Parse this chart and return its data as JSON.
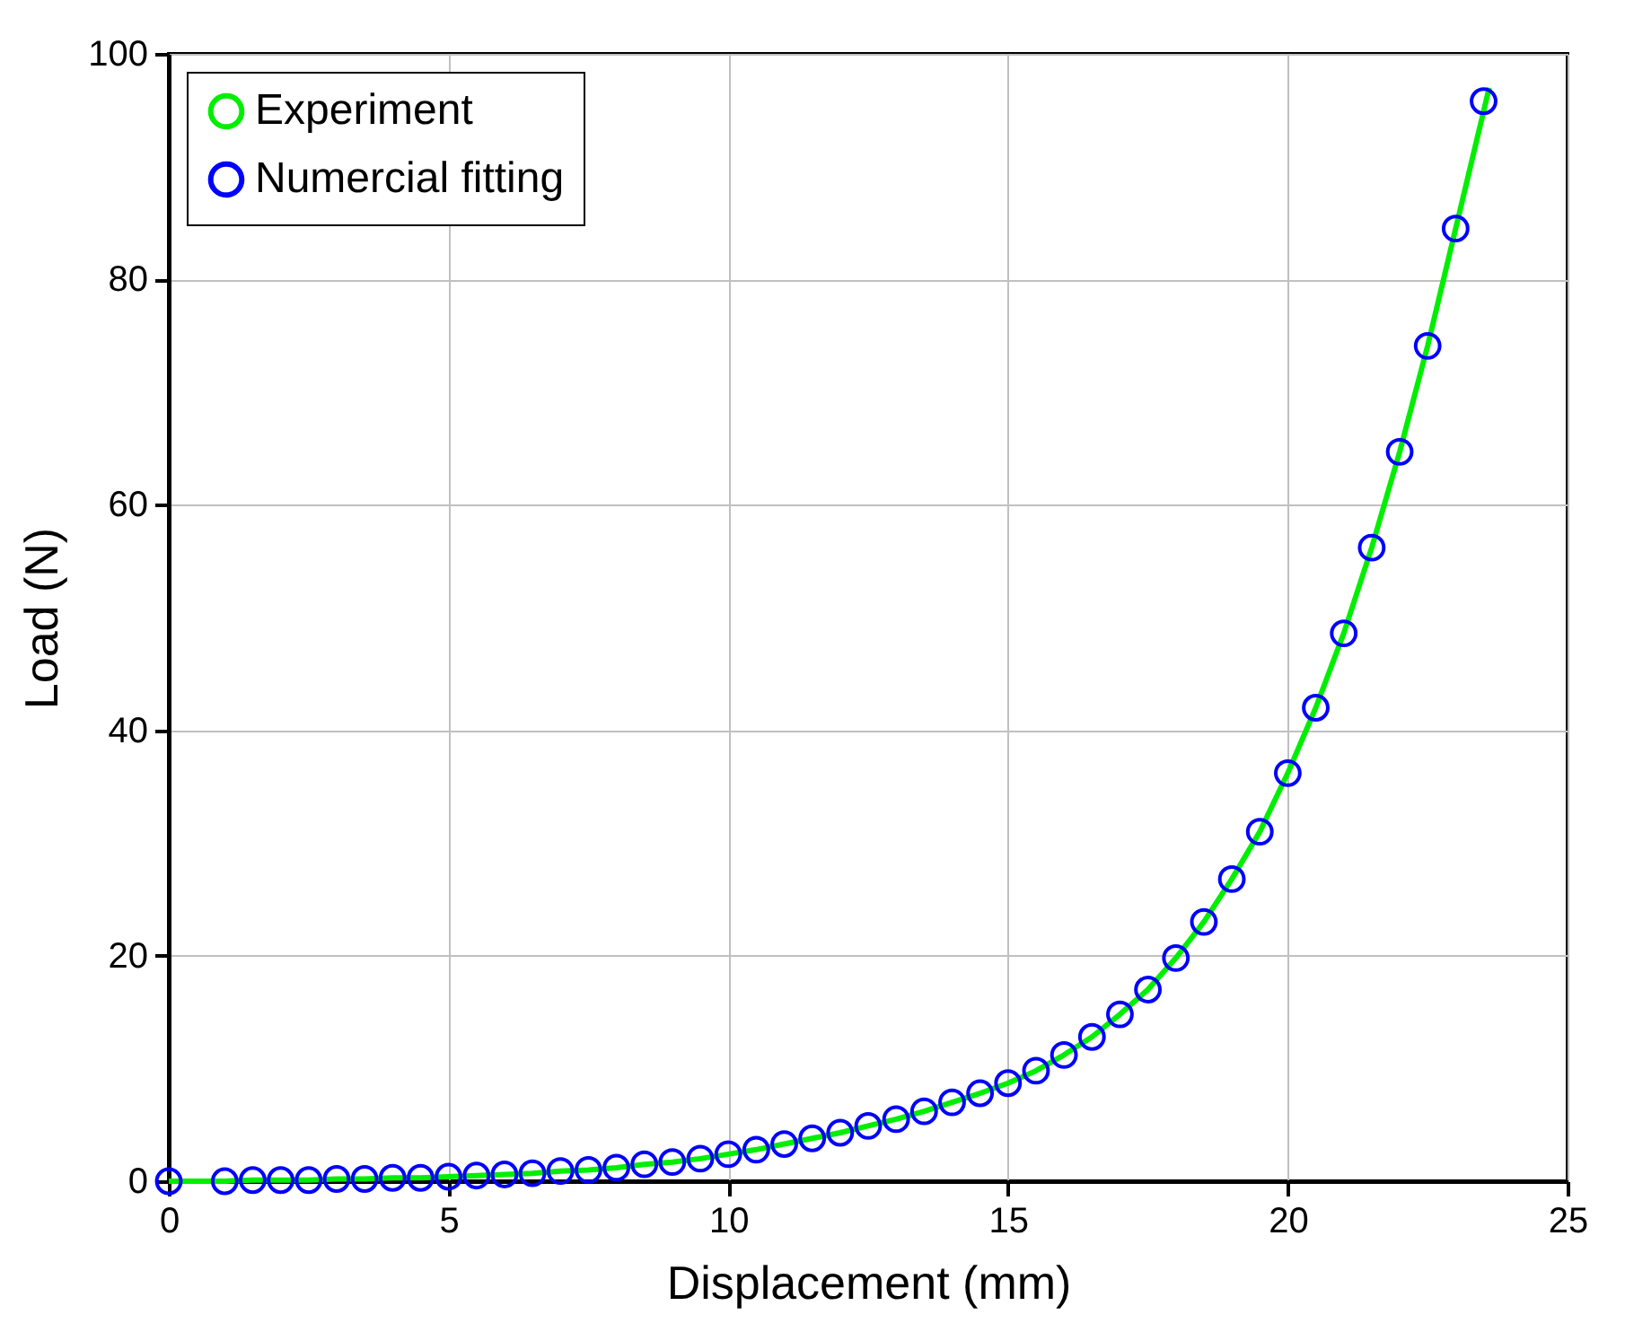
{
  "chart_data": {
    "type": "line",
    "xlabel": "Displacement (mm)",
    "ylabel": "Load (N)",
    "xlim": [
      0,
      25
    ],
    "xticks": [
      0,
      5,
      10,
      15,
      20,
      25
    ],
    "ylim": [
      0,
      100
    ],
    "yticks": [
      0,
      20,
      40,
      60,
      80,
      100
    ],
    "grid": true,
    "legend": "top left",
    "series": [
      {
        "name": "Experiment",
        "color": "#00ee00",
        "marker": "none",
        "x": [
          0,
          1,
          1.5,
          2,
          2.5,
          3,
          3.5,
          4,
          4.5,
          5,
          5.5,
          6,
          6.5,
          7,
          7.5,
          8,
          8.5,
          9,
          9.5,
          10,
          10.5,
          11,
          11.5,
          12,
          12.5,
          13,
          13.5,
          14,
          14.5,
          15,
          15.5,
          16,
          16.5,
          17,
          17.5,
          18,
          18.5,
          19,
          19.5,
          20,
          20.5,
          21,
          21.5,
          22,
          22.5,
          23,
          23.6
        ],
        "values": [
          0,
          0,
          0.1,
          0.1,
          0.1,
          0.2,
          0.2,
          0.3,
          0.3,
          0.4,
          0.5,
          0.6,
          0.7,
          0.9,
          1.0,
          1.2,
          1.5,
          1.7,
          2.0,
          2.4,
          2.8,
          3.3,
          3.8,
          4.3,
          4.9,
          5.5,
          6.2,
          7.0,
          7.8,
          8.7,
          9.8,
          11.2,
          12.8,
          14.8,
          17.0,
          19.8,
          23.0,
          26.8,
          31.0,
          36.2,
          42.0,
          48.6,
          56.2,
          64.7,
          74.1,
          84.5,
          97
        ]
      },
      {
        "name": "Numercial fitting",
        "type": "scatter",
        "color": "#0000ff",
        "marker": "circle",
        "x": [
          0,
          1,
          1.5,
          2,
          2.5,
          3,
          3.5,
          4,
          4.5,
          5,
          5.5,
          6,
          6.5,
          7,
          7.5,
          8,
          8.5,
          9,
          9.5,
          10,
          10.5,
          11,
          11.5,
          12,
          12.5,
          13,
          13.5,
          14,
          14.5,
          15,
          15.5,
          16,
          16.5,
          17,
          17.5,
          18,
          18.5,
          19,
          19.5,
          20,
          20.5,
          21,
          21.5,
          22,
          22.5,
          23,
          23.5
        ],
        "values": [
          0,
          0,
          0.1,
          0.1,
          0.1,
          0.2,
          0.2,
          0.3,
          0.3,
          0.4,
          0.5,
          0.6,
          0.7,
          0.9,
          1.0,
          1.2,
          1.5,
          1.7,
          2.0,
          2.4,
          2.8,
          3.3,
          3.8,
          4.3,
          4.9,
          5.5,
          6.2,
          7.0,
          7.8,
          8.7,
          9.8,
          11.2,
          12.8,
          14.8,
          17.0,
          19.8,
          23.0,
          26.8,
          31.0,
          36.2,
          42.0,
          48.6,
          56.2,
          64.7,
          74.1,
          84.5,
          95.8
        ]
      }
    ]
  }
}
